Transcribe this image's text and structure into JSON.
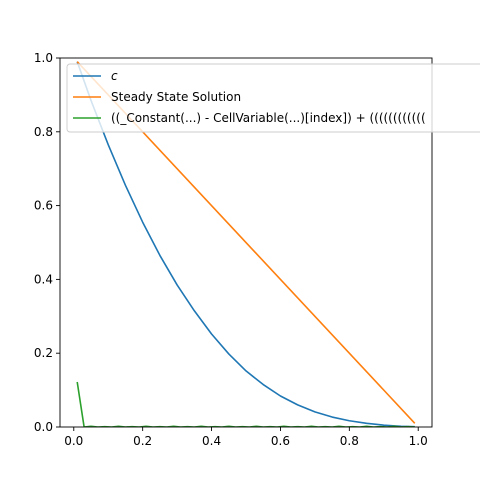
{
  "chart_data": {
    "type": "line",
    "title": "",
    "xlabel": "",
    "ylabel": "",
    "xlim": [
      -0.04,
      1.04
    ],
    "ylim": [
      0.0,
      1.0
    ],
    "grid": false,
    "legend_position": "top-right",
    "x_ticks": [
      0.0,
      0.2,
      0.4,
      0.6,
      0.8,
      1.0
    ],
    "x_tick_labels": [
      "0.0",
      "0.2",
      "0.4",
      "0.6",
      "0.8",
      "1.0"
    ],
    "y_ticks": [
      0.0,
      0.2,
      0.4,
      0.6,
      0.8,
      1.0
    ],
    "y_tick_labels": [
      "0.0",
      "0.2",
      "0.4",
      "0.6",
      "0.8",
      "1.0"
    ],
    "series": [
      {
        "name": "c",
        "color": "#1f77b4",
        "x": [
          0.01,
          0.05,
          0.1,
          0.15,
          0.2,
          0.25,
          0.3,
          0.35,
          0.4,
          0.45,
          0.5,
          0.55,
          0.6,
          0.65,
          0.7,
          0.75,
          0.8,
          0.85,
          0.9,
          0.95,
          0.99
        ],
        "y": [
          0.99,
          0.885,
          0.765,
          0.655,
          0.555,
          0.465,
          0.385,
          0.315,
          0.252,
          0.198,
          0.152,
          0.115,
          0.084,
          0.06,
          0.041,
          0.027,
          0.017,
          0.01,
          0.005,
          0.002,
          0.001
        ]
      },
      {
        "name": "Steady State Solution",
        "color": "#ff7f0e",
        "x": [
          0.01,
          0.99
        ],
        "y": [
          0.99,
          0.01
        ]
      },
      {
        "name": "((_Constant(...) - CellVariable(...)[index]) + ((((((((((((",
        "color": "#2ca02c",
        "x": [
          0.01,
          0.03,
          0.05,
          0.07,
          0.09,
          0.11,
          0.13,
          0.15,
          0.17,
          0.19,
          0.21,
          0.23,
          0.25,
          0.27,
          0.29,
          0.31,
          0.33,
          0.35,
          0.37,
          0.39,
          0.41,
          0.43,
          0.45,
          0.47,
          0.49,
          0.51,
          0.53,
          0.55,
          0.57,
          0.59,
          0.61,
          0.63,
          0.65,
          0.67,
          0.69,
          0.71,
          0.73,
          0.75,
          0.77,
          0.79,
          0.81,
          0.83,
          0.85,
          0.87,
          0.89,
          0.91,
          0.93,
          0.95,
          0.97,
          0.99
        ],
        "y": [
          0.122,
          0.0,
          0.002,
          0.0,
          0.001,
          0.0,
          0.002,
          0.0,
          0.001,
          0.0,
          0.002,
          0.0,
          0.001,
          0.0,
          0.002,
          0.0,
          0.001,
          0.0,
          0.002,
          0.0,
          0.001,
          0.0,
          0.002,
          0.0,
          0.001,
          0.0,
          0.002,
          0.0,
          0.001,
          0.0,
          0.002,
          0.0,
          0.001,
          0.0,
          0.002,
          0.0,
          0.001,
          0.0,
          0.002,
          0.0,
          0.001,
          0.0,
          0.002,
          0.0,
          0.001,
          0.0,
          0.002,
          0.0,
          0.001,
          0.0
        ]
      }
    ]
  }
}
